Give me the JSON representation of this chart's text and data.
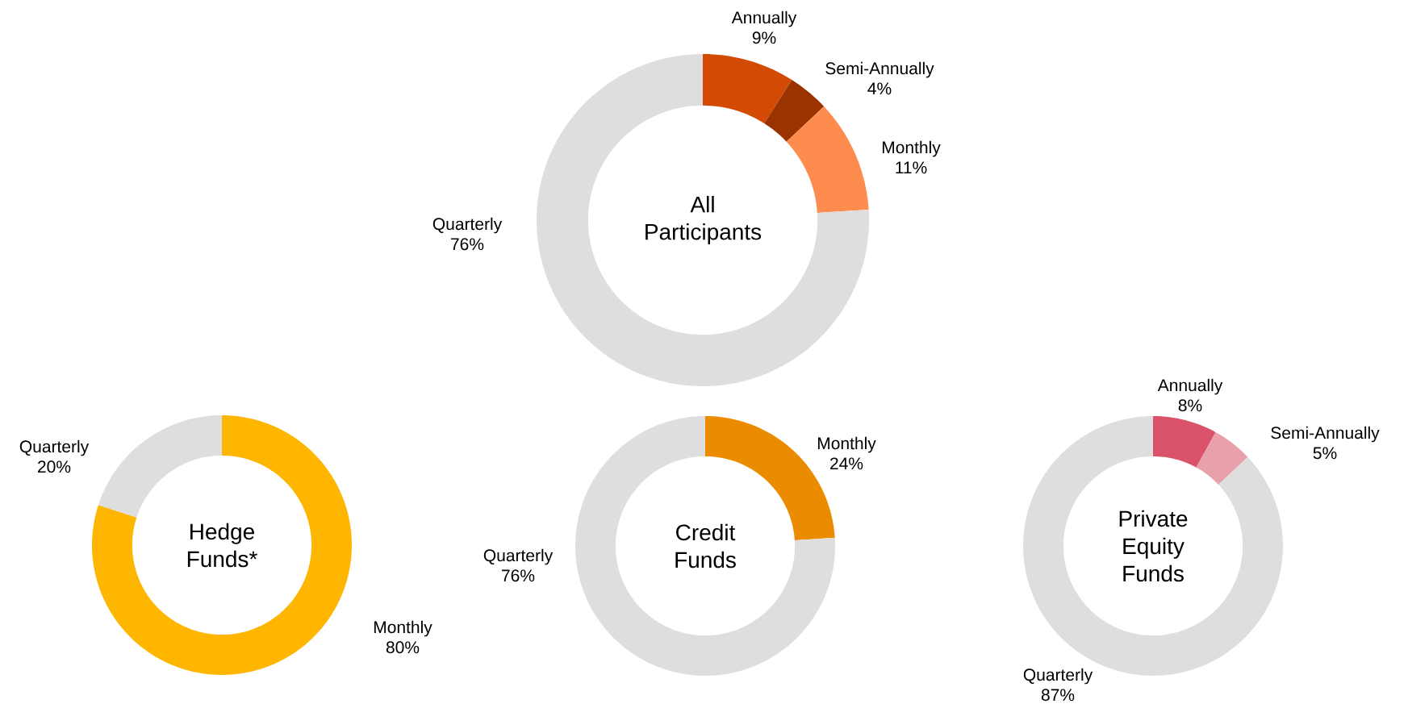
{
  "chart_data": [
    {
      "type": "donut",
      "title": "All Participants",
      "categories": [
        "Annually",
        "Semi-Annually",
        "Monthly",
        "Quarterly"
      ],
      "values": [
        9,
        4,
        11,
        76
      ],
      "value_labels": [
        "9%",
        "4%",
        "11%",
        "76%"
      ],
      "colors": [
        "#d24a03",
        "#9a3300",
        "#fe8c4f",
        "#dedede"
      ]
    },
    {
      "type": "donut",
      "title": "Hedge Funds*",
      "categories": [
        "Monthly",
        "Quarterly"
      ],
      "values": [
        80,
        20
      ],
      "value_labels": [
        "80%",
        "20%"
      ],
      "colors": [
        "#ffb600",
        "#dedede"
      ]
    },
    {
      "type": "donut",
      "title": "Credit Funds",
      "categories": [
        "Monthly",
        "Quarterly"
      ],
      "values": [
        24,
        76
      ],
      "value_labels": [
        "24%",
        "76%"
      ],
      "colors": [
        "#eb8c00",
        "#dedede"
      ]
    },
    {
      "type": "donut",
      "title": "Private Equity Funds",
      "categories": [
        "Annually",
        "Semi-Annually",
        "Quarterly"
      ],
      "values": [
        8,
        5,
        87
      ],
      "value_labels": [
        "8%",
        "5%",
        "87%"
      ],
      "colors": [
        "#db536a",
        "#e8a0aa",
        "#dedede"
      ]
    }
  ]
}
